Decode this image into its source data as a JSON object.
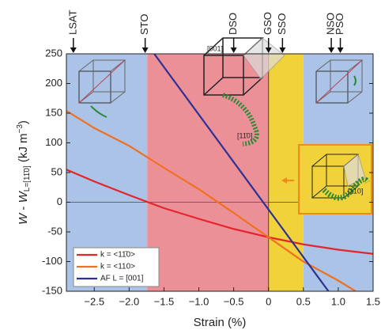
{
  "chart_data": {
    "type": "line",
    "xlabel": "Strain (%)",
    "ylabel": [
      "W",
      " - ",
      "W",
      "L=[11̄0]",
      " (kJ m",
      "−3",
      ")"
    ],
    "xlim": [
      -2.9,
      1.5
    ],
    "ylim": [
      -150,
      250
    ],
    "xticks": [
      {
        "value": -2.5,
        "label": "−2.5"
      },
      {
        "value": -2.0,
        "label": "−2.0"
      },
      {
        "value": -1.5,
        "label": "−1.5"
      },
      {
        "value": -1.0,
        "label": "−1.0"
      },
      {
        "value": -0.5,
        "label": "−0.5"
      },
      0,
      0.5,
      {
        "value": 1.0,
        "label": "1.0"
      },
      1.5
    ],
    "yticks": [
      -150,
      -100,
      -50,
      0,
      50,
      100,
      150,
      200,
      250
    ],
    "regions": [
      {
        "start": -2.9,
        "end": -1.74,
        "color": "#aac3e6"
      },
      {
        "start": -1.74,
        "end": 0,
        "color": "#ec9097"
      },
      {
        "start": 0,
        "end": 0.5,
        "color": "#f2d23a"
      },
      {
        "start": 0.5,
        "end": 1.5,
        "color": "#aac3e6"
      }
    ],
    "substrates": [
      {
        "label": "LSAT",
        "x": -2.8,
        "color": "#5a58a8"
      },
      {
        "label": "STO",
        "x": -1.77,
        "color": "#555"
      },
      {
        "label": "DSO",
        "x": -0.5,
        "color": "#e0404a"
      },
      {
        "label": "GSO",
        "x": 0,
        "color": "#e0404a"
      },
      {
        "label": "SSO",
        "x": 0.2,
        "color": "#f08a1c"
      },
      {
        "label": "NSO",
        "x": 0.9,
        "color": "#5a58a8"
      },
      {
        "label": "PSO",
        "x": 1.03,
        "color": "#5a58a8"
      }
    ],
    "annotations": [
      "[001]",
      "[11̄0]",
      "[110]"
    ],
    "series": [
      {
        "name": "k = <11̄0>",
        "color": "#e3262e",
        "x": [
          -2.9,
          -2.5,
          -2.0,
          -1.5,
          -1.0,
          -0.5,
          0,
          0.5,
          1.0,
          1.5
        ],
        "values": [
          55,
          35,
          12,
          -10,
          -28,
          -45,
          -59,
          -71,
          -80,
          -87
        ]
      },
      {
        "name": "k = <110>",
        "color": "#f07020",
        "x": [
          -2.9,
          -2.5,
          -2.0,
          -1.5,
          -1.0,
          -0.5,
          0,
          0.5,
          1.0,
          1.25
        ],
        "values": [
          154,
          125,
          95,
          58,
          22,
          -18,
          -59,
          -100,
          -132,
          -150
        ]
      },
      {
        "name": "AF L = [001]",
        "color": "#2e3192",
        "x": [
          -1.64,
          0.86
        ],
        "values": [
          250,
          -150
        ]
      }
    ]
  }
}
